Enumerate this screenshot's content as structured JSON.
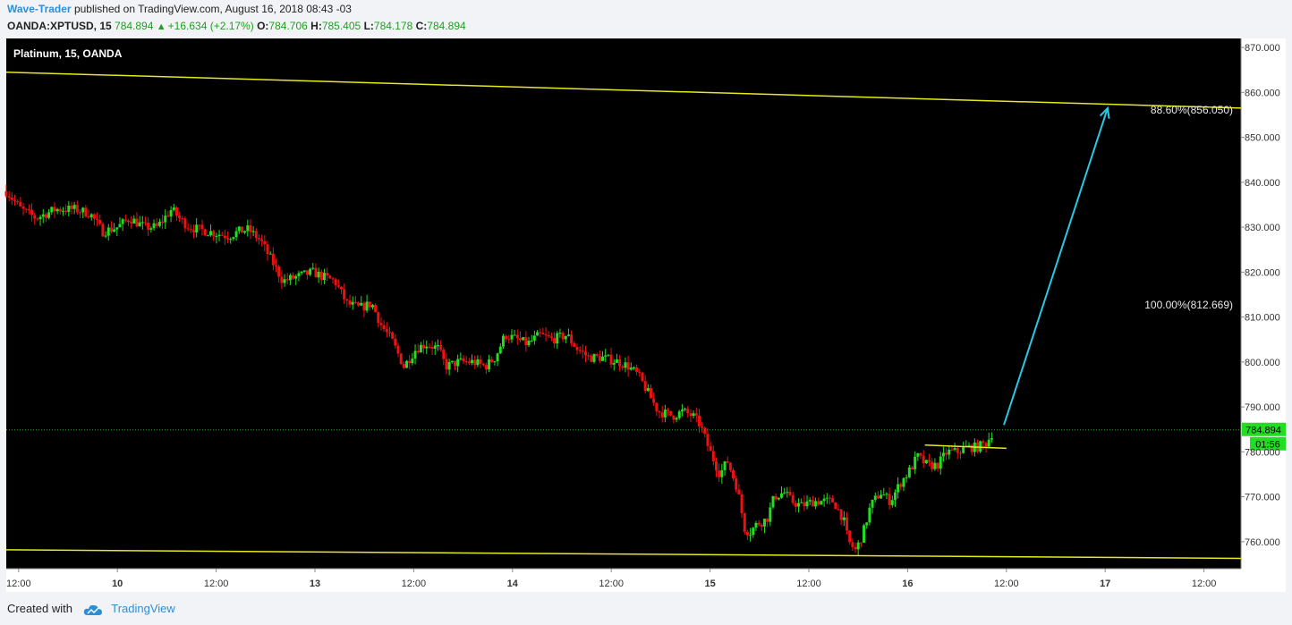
{
  "header": {
    "author": "Wave-Trader",
    "published_text": "published on TradingView.com, August 16, 2018 08:43 -03"
  },
  "quote": {
    "symbol_tf": "OANDA:XPTUSD, 15",
    "last": "784.894",
    "change": "+16.634 (+2.17%)",
    "o_label": "O:",
    "o_val": "784.706",
    "h_label": "H:",
    "h_val": "785.405",
    "l_label": "L:",
    "l_val": "784.178",
    "c_label": "C:",
    "c_val": "784.894"
  },
  "footer": {
    "created_with": "Created with",
    "brand": "TradingView"
  },
  "colors": {
    "background": "#000000",
    "up_candle": "#22dd22",
    "down_candle": "#ee1111",
    "trendline": "#e8e820",
    "projection_arrow": "#29c9e6",
    "price_line": "#22aa22",
    "accent": "#2e8fd6"
  },
  "chart_data": {
    "type": "candlestick",
    "title": "Platinum, 15, OANDA",
    "x_tick_labels": [
      "12:00",
      "10",
      "12:00",
      "13",
      "12:00",
      "14",
      "12:00",
      "15",
      "12:00",
      "16",
      "12:00",
      "17",
      "12:00"
    ],
    "y_ticks": [
      "870.000",
      "860.000",
      "850.000",
      "840.000",
      "830.000",
      "820.000",
      "810.000",
      "800.000",
      "790.000",
      "780.000",
      "770.000",
      "760.000"
    ],
    "ylim": [
      754,
      872
    ],
    "close_path": [
      [
        0,
        838
      ],
      [
        0.6,
        834
      ],
      [
        1.2,
        832
      ],
      [
        2.0,
        834
      ],
      [
        2.8,
        834
      ],
      [
        3.4,
        833
      ],
      [
        3.9,
        829
      ],
      [
        4.5,
        830
      ],
      [
        5.0,
        832
      ],
      [
        5.6,
        830
      ],
      [
        6.1,
        830
      ],
      [
        6.7,
        834
      ],
      [
        7.0,
        832
      ],
      [
        7.4,
        830
      ],
      [
        8.2,
        829
      ],
      [
        9.0,
        828
      ],
      [
        9.4,
        829
      ],
      [
        9.8,
        829.5
      ],
      [
        10.3,
        827
      ],
      [
        10.7,
        823
      ],
      [
        11.2,
        818
      ],
      [
        11.8,
        819
      ],
      [
        12.4,
        820
      ],
      [
        12.8,
        819
      ],
      [
        13.3,
        818
      ],
      [
        13.8,
        813
      ],
      [
        14.3,
        812
      ],
      [
        14.8,
        813
      ],
      [
        15.2,
        808
      ],
      [
        15.6,
        805
      ],
      [
        16.1,
        799
      ],
      [
        16.6,
        803
      ],
      [
        17.0,
        804
      ],
      [
        17.5,
        803
      ],
      [
        17.8,
        799
      ],
      [
        18.3,
        800
      ],
      [
        18.9,
        800
      ],
      [
        19.4,
        799
      ],
      [
        19.8,
        801
      ],
      [
        20.2,
        806
      ],
      [
        20.7,
        805
      ],
      [
        21.1,
        804
      ],
      [
        21.6,
        806
      ],
      [
        22.1,
        805
      ],
      [
        22.7,
        806
      ],
      [
        23.1,
        803
      ],
      [
        23.6,
        801
      ],
      [
        24.1,
        801
      ],
      [
        24.8,
        800
      ],
      [
        25.2,
        799
      ],
      [
        25.6,
        797
      ],
      [
        26.0,
        793
      ],
      [
        26.4,
        789
      ],
      [
        27.0,
        788
      ],
      [
        27.4,
        789
      ],
      [
        27.8,
        788
      ],
      [
        28.1,
        786
      ],
      [
        28.5,
        780
      ],
      [
        28.9,
        775
      ],
      [
        29.2,
        778
      ],
      [
        29.6,
        772
      ],
      [
        29.9,
        763
      ],
      [
        30.1,
        762
      ],
      [
        30.4,
        764
      ],
      [
        30.8,
        765
      ],
      [
        31.1,
        770
      ],
      [
        31.5,
        771
      ],
      [
        31.8,
        769
      ],
      [
        32.2,
        768
      ],
      [
        32.7,
        769
      ],
      [
        33.1,
        769
      ],
      [
        33.5,
        769
      ],
      [
        33.9,
        765
      ],
      [
        34.1,
        760
      ],
      [
        34.4,
        758
      ],
      [
        34.7,
        762
      ],
      [
        35.0,
        768
      ],
      [
        35.4,
        771
      ],
      [
        35.8,
        769
      ],
      [
        36.2,
        773
      ],
      [
        36.6,
        776
      ],
      [
        36.9,
        779
      ],
      [
        37.3,
        777
      ],
      [
        37.7,
        777
      ],
      [
        38.1,
        780
      ],
      [
        38.5,
        780
      ],
      [
        38.9,
        781
      ],
      [
        39.3,
        781
      ],
      [
        39.7,
        782
      ],
      [
        40.0,
        785
      ]
    ],
    "annotations": [
      {
        "text": "88.60%(856.050)",
        "price": 856.05
      },
      {
        "text": "100.00%(812.669)",
        "price": 812.669
      }
    ],
    "trendlines": [
      {
        "name": "upper-channel",
        "from": [
          0,
          864.5
        ],
        "to": [
          50,
          856.5
        ]
      },
      {
        "name": "lower-channel",
        "from": [
          0,
          758.2
        ],
        "to": [
          50,
          756.3
        ]
      },
      {
        "name": "breakout-level",
        "from": [
          37.2,
          781.5
        ],
        "to": [
          40.5,
          780.8
        ]
      }
    ],
    "projection": {
      "from": [
        40.4,
        786
      ],
      "to": [
        44.6,
        856.5
      ]
    },
    "current_price": {
      "value": 784.894,
      "label": "784.894",
      "countdown": "01:56"
    },
    "x_range": [
      0,
      50
    ]
  }
}
